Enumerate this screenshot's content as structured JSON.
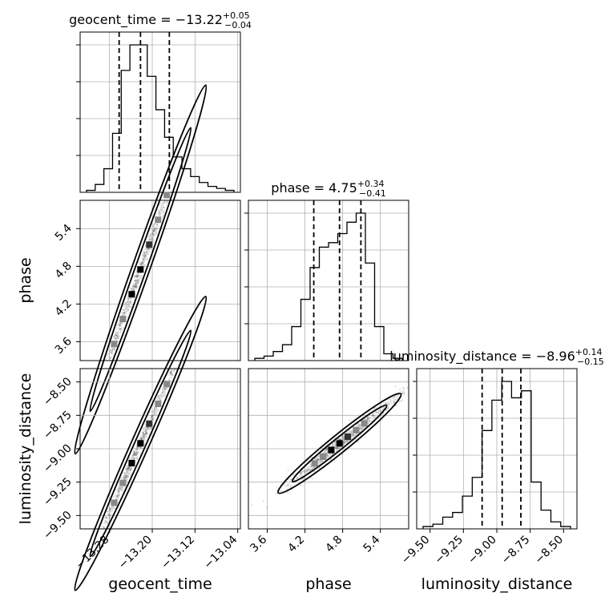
{
  "chart_data": {
    "type": "scatter",
    "subtype": "corner-plot",
    "parameters": [
      {
        "name": "geocent_time",
        "title_name": "geocent_time",
        "median": "−13.22",
        "err_plus": "+0.05",
        "err_minus": "−0.04",
        "range": [
          -13.335,
          -13.035
        ],
        "ticks": [
          -13.28,
          -13.2,
          -13.12,
          -13.04
        ],
        "tick_labels": [
          "−13.28",
          "−13.20",
          "−13.12",
          "−13.04"
        ],
        "quantiles": [
          -13.262,
          -13.222,
          -13.168
        ],
        "hist_counts": [
          1,
          4,
          12,
          30,
          62,
          75,
          75,
          59,
          42,
          28,
          18,
          12,
          8,
          5,
          3,
          2,
          1
        ]
      },
      {
        "name": "phase",
        "title_name": "phase",
        "median": "4.75",
        "err_plus": "+0.34",
        "err_minus": "−0.41",
        "range": [
          3.3,
          5.85
        ],
        "ticks": [
          3.6,
          4.2,
          4.8,
          5.4
        ],
        "tick_labels": [
          "3.6",
          "4.2",
          "4.8",
          "5.4"
        ],
        "quantiles": [
          4.34,
          4.75,
          5.09
        ],
        "hist_counts": [
          1,
          2,
          4,
          7,
          15,
          27,
          41,
          50,
          52,
          56,
          61,
          65,
          43,
          15,
          3,
          1
        ]
      },
      {
        "name": "luminosity_distance",
        "title_name": "luminosity_distance",
        "median": "−8.96",
        "err_plus": "+0.14",
        "err_minus": "−0.15",
        "range": [
          -9.6,
          -8.4
        ],
        "ticks": [
          -9.5,
          -9.25,
          -9.0,
          -8.75,
          -8.5
        ],
        "tick_labels": [
          "−9.50",
          "−9.25",
          "−9.00",
          "−8.75",
          "−8.50"
        ],
        "quantiles": [
          -9.11,
          -8.96,
          -8.82
        ],
        "hist_counts": [
          1,
          2,
          5,
          7,
          14,
          22,
          42,
          55,
          63,
          56,
          59,
          20,
          8,
          3,
          1
        ]
      }
    ],
    "correlations": [
      {
        "x": "geocent_time",
        "y": "phase",
        "slope": 24.0
      },
      {
        "x": "geocent_time",
        "y": "luminosity_distance",
        "slope": 9.0
      },
      {
        "x": "phase",
        "y": "luminosity_distance",
        "slope": 0.38
      }
    ],
    "grid": true,
    "style": {
      "line_color": "#000000",
      "grid_color": "#b0b0b0"
    }
  }
}
